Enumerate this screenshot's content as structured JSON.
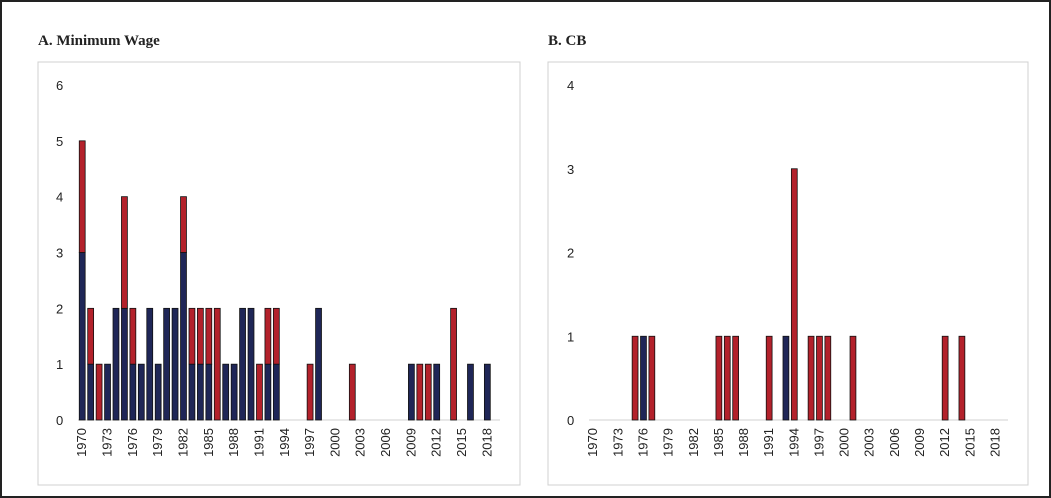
{
  "chart_data": [
    {
      "type": "bar",
      "stacked": true,
      "title": "A. Minimum Wage",
      "categories": [
        "1970",
        null,
        null,
        "1973",
        null,
        null,
        "1976",
        null,
        null,
        "1979",
        null,
        null,
        "1982",
        null,
        null,
        "1985",
        null,
        null,
        "1988",
        null,
        null,
        "1991",
        null,
        null,
        "1994",
        null,
        null,
        "1997",
        null,
        null,
        "2000",
        null,
        null,
        "2003",
        null,
        null,
        "2006",
        null,
        null,
        "2009",
        null,
        null,
        "2012",
        null,
        null,
        "2015",
        null,
        null,
        "2018",
        null
      ],
      "series": [
        {
          "color": "#1f2657",
          "values": [
            3,
            1,
            0,
            1,
            2,
            2,
            1,
            1,
            2,
            1,
            2,
            2,
            3,
            1,
            1,
            1,
            0,
            1,
            1,
            2,
            2,
            0,
            1,
            1,
            0,
            0,
            0,
            0,
            2,
            0,
            0,
            0,
            0,
            0,
            0,
            0,
            0,
            0,
            0,
            1,
            0,
            0,
            1,
            0,
            0,
            0,
            1,
            0,
            1,
            0
          ]
        },
        {
          "color": "#b3212b",
          "values": [
            2,
            1,
            1,
            0,
            0,
            2,
            1,
            0,
            0,
            0,
            0,
            0,
            1,
            1,
            1,
            1,
            2,
            0,
            0,
            0,
            0,
            1,
            1,
            1,
            0,
            0,
            0,
            1,
            0,
            0,
            0,
            0,
            1,
            0,
            0,
            0,
            0,
            0,
            0,
            0,
            1,
            1,
            0,
            0,
            2,
            0,
            0,
            0,
            0,
            0
          ]
        }
      ],
      "ylim": [
        0,
        6
      ],
      "yticks": [
        0,
        1,
        2,
        3,
        4,
        5,
        6
      ]
    },
    {
      "type": "bar",
      "stacked": true,
      "title": "B. CB",
      "categories": [
        "1970",
        null,
        null,
        "1973",
        null,
        null,
        "1976",
        null,
        null,
        "1979",
        null,
        null,
        "1982",
        null,
        null,
        "1985",
        null,
        null,
        "1988",
        null,
        null,
        "1991",
        null,
        null,
        "1994",
        null,
        null,
        "1997",
        null,
        null,
        "2000",
        null,
        null,
        "2003",
        null,
        null,
        "2006",
        null,
        null,
        "2009",
        null,
        null,
        "2012",
        null,
        null,
        "2015",
        null,
        null,
        "2018",
        null
      ],
      "series": [
        {
          "color": "#1f2657",
          "values": [
            0,
            0,
            0,
            0,
            0,
            0,
            1,
            0,
            0,
            0,
            0,
            0,
            0,
            0,
            0,
            0,
            0,
            0,
            0,
            0,
            0,
            0,
            0,
            1,
            0,
            0,
            0,
            0,
            0,
            0,
            0,
            0,
            0,
            0,
            0,
            0,
            0,
            0,
            0,
            0,
            0,
            0,
            0,
            0,
            0,
            0,
            0,
            0,
            0,
            0
          ]
        },
        {
          "color": "#b3212b",
          "values": [
            0,
            0,
            0,
            0,
            0,
            1,
            0,
            1,
            0,
            0,
            0,
            0,
            0,
            0,
            0,
            1,
            1,
            1,
            0,
            0,
            0,
            1,
            0,
            0,
            3,
            0,
            1,
            1,
            1,
            0,
            0,
            1,
            0,
            0,
            0,
            0,
            0,
            0,
            0,
            0,
            0,
            0,
            1,
            0,
            1,
            0,
            0,
            0,
            0,
            0
          ]
        }
      ],
      "ylim": [
        0,
        4
      ],
      "yticks": [
        0,
        1,
        2,
        3,
        4
      ]
    }
  ]
}
